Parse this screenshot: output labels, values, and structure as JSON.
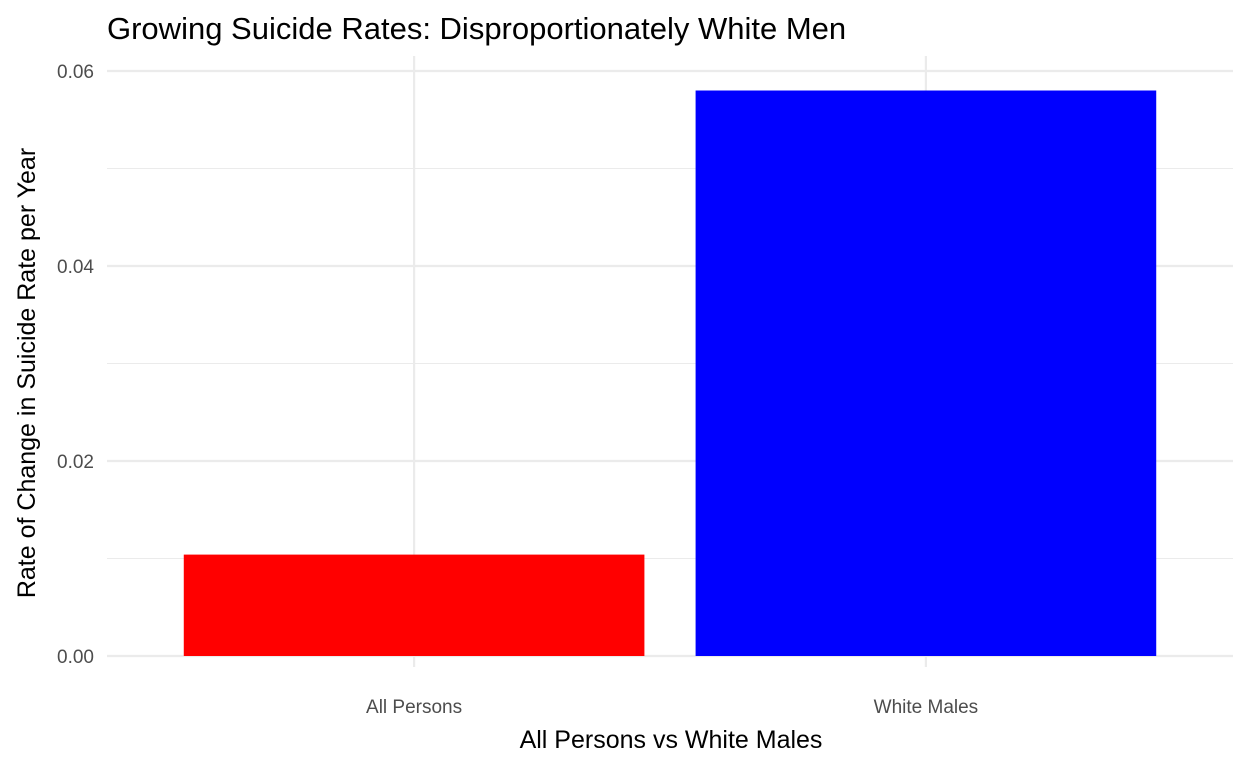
{
  "chart_data": {
    "type": "bar",
    "title": "Growing Suicide Rates: Disproportionately White Men",
    "xlabel": "All Persons vs White Males",
    "ylabel": "Rate of Change in Suicide Rate per Year",
    "categories": [
      "All Persons",
      "White Males"
    ],
    "values": [
      0.0104,
      0.058
    ],
    "colors": [
      "#ff0000",
      "#0000ff"
    ],
    "ylim": [
      0,
      0.06
    ],
    "yticks": [
      0,
      0.02,
      0.04,
      0.06
    ],
    "ytick_labels": [
      "0.00",
      "0.02",
      "0.04",
      "0.06"
    ],
    "grid": true,
    "legend": "none"
  }
}
